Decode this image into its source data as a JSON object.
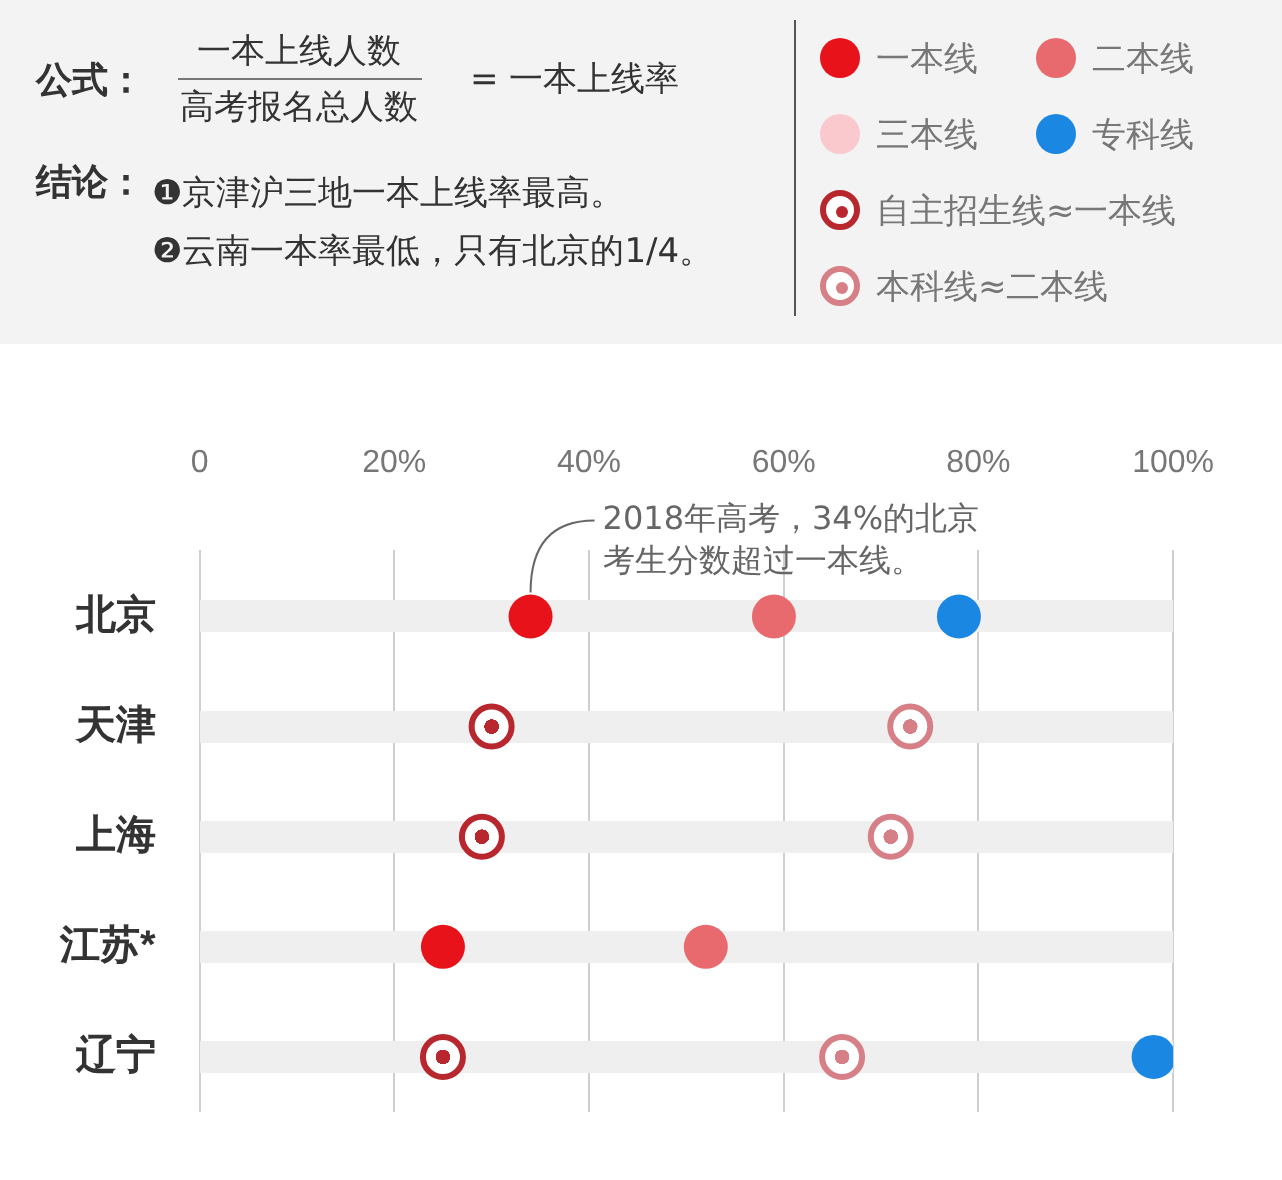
{
  "chart_data": {
    "type": "scatter",
    "orientation": "horizontal",
    "categories": [
      "北京",
      "天津",
      "上海",
      "江苏*",
      "辽宁"
    ],
    "xlim": [
      0,
      100
    ],
    "xticks": [
      {
        "value": 0,
        "label": "0"
      },
      {
        "value": 20,
        "label": "20%"
      },
      {
        "value": 40,
        "label": "40%"
      },
      {
        "value": 60,
        "label": "60%"
      },
      {
        "value": 80,
        "label": "80%"
      },
      {
        "value": 100,
        "label": "100%"
      }
    ],
    "grid": true,
    "legend": "top right",
    "series": [
      {
        "name": "一本线",
        "color": "#e8121a",
        "marker": "circle",
        "values": [
          34,
          null,
          null,
          25,
          null
        ]
      },
      {
        "name": "二本线",
        "color": "#e8696e",
        "marker": "circle",
        "values": [
          59,
          null,
          null,
          52,
          null
        ]
      },
      {
        "name": "三本线",
        "color": "#f9c9cd",
        "marker": "circle",
        "values": [
          null,
          null,
          null,
          null,
          null
        ]
      },
      {
        "name": "专科线",
        "color": "#1a87e2",
        "marker": "circle",
        "values": [
          78,
          null,
          null,
          null,
          98
        ]
      },
      {
        "name": "自主招生线≈一本线",
        "color": "#b8262e",
        "values": [
          null,
          30,
          29,
          null,
          25
        ]
      },
      {
        "name": "本科线≈二本线",
        "color": "#d77f86",
        "values": [
          null,
          73,
          71,
          null,
          66
        ]
      }
    ],
    "annotations": [
      "公式：",
      "一本上线人数",
      "高考报名总人数",
      "= 一本上线率",
      "结论：",
      "❶京津沪三地一本上线率最高。",
      "❷云南一本率最低，只有北京的1/4。",
      {
        "text": "2018年高考，34%的北京考生分数超过一本线。",
        "x": 34,
        "y": "北京"
      }
    ]
  }
}
